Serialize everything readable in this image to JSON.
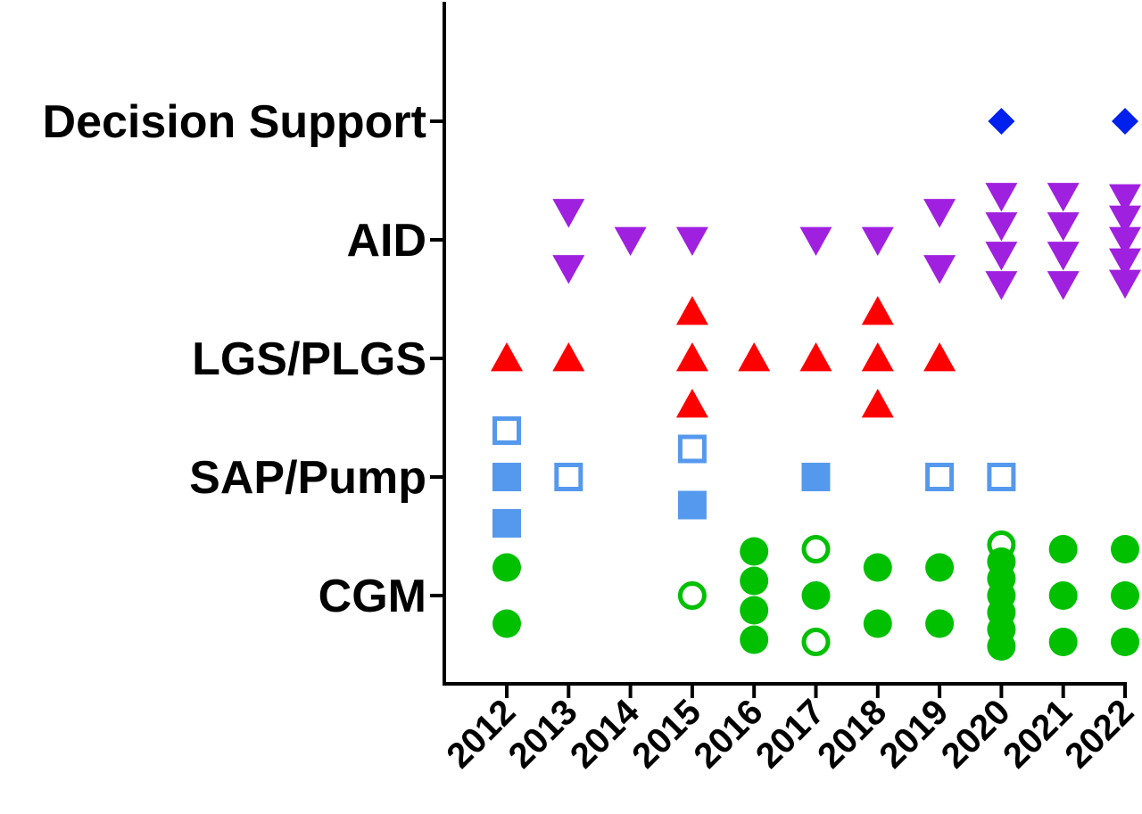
{
  "chart_data": {
    "type": "scatter",
    "title": "",
    "xlabel": "",
    "ylabel": "",
    "categories_y": [
      "CGM",
      "SAP/Pump",
      "LGS/PLGS",
      "AID",
      "Decision Support"
    ],
    "categories_x": [
      "2012",
      "2013",
      "2014",
      "2015",
      "2016",
      "2017",
      "2018",
      "2019",
      "2020",
      "2021",
      "2022"
    ],
    "grid": false,
    "legend": "none",
    "marker_styles": {
      "cgm_filled": {
        "shape": "circle",
        "fill": true,
        "color": "#00c000"
      },
      "cgm_open": {
        "shape": "circle",
        "fill": false,
        "color": "#00c000"
      },
      "pump_filled": {
        "shape": "square",
        "fill": true,
        "color": "#5599ee"
      },
      "pump_open": {
        "shape": "square",
        "fill": false,
        "color": "#5599ee"
      },
      "lgs": {
        "shape": "triangle-up",
        "fill": true,
        "color": "#ff0000"
      },
      "aid": {
        "shape": "triangle-down",
        "fill": true,
        "color": "#a020e0"
      },
      "decision": {
        "shape": "diamond",
        "fill": true,
        "color": "#0020ee"
      }
    },
    "points": [
      {
        "x": "2012",
        "y": "CGM",
        "count": 2,
        "style": "cgm_filled"
      },
      {
        "x": "2015",
        "y": "CGM",
        "count": 1,
        "style": "cgm_open"
      },
      {
        "x": "2016",
        "y": "CGM",
        "count": 4,
        "style": "cgm_filled"
      },
      {
        "x": "2017",
        "y": "CGM",
        "count": 1,
        "style": "cgm_filled"
      },
      {
        "x": "2017",
        "y": "CGM",
        "count": 2,
        "style": "cgm_open"
      },
      {
        "x": "2018",
        "y": "CGM",
        "count": 2,
        "style": "cgm_filled"
      },
      {
        "x": "2019",
        "y": "CGM",
        "count": 2,
        "style": "cgm_filled"
      },
      {
        "x": "2020",
        "y": "CGM",
        "count": 6,
        "style": "cgm_filled"
      },
      {
        "x": "2020",
        "y": "CGM",
        "count": 1,
        "style": "cgm_open"
      },
      {
        "x": "2021",
        "y": "CGM",
        "count": 3,
        "style": "cgm_filled"
      },
      {
        "x": "2022",
        "y": "CGM",
        "count": 3,
        "style": "cgm_filled"
      },
      {
        "x": "2012",
        "y": "SAP/Pump",
        "count": 2,
        "style": "pump_filled"
      },
      {
        "x": "2012",
        "y": "SAP/Pump",
        "count": 1,
        "style": "pump_open"
      },
      {
        "x": "2013",
        "y": "SAP/Pump",
        "count": 1,
        "style": "pump_open"
      },
      {
        "x": "2015",
        "y": "SAP/Pump",
        "count": 1,
        "style": "pump_filled"
      },
      {
        "x": "2015",
        "y": "SAP/Pump",
        "count": 1,
        "style": "pump_open"
      },
      {
        "x": "2017",
        "y": "SAP/Pump",
        "count": 1,
        "style": "pump_filled"
      },
      {
        "x": "2019",
        "y": "SAP/Pump",
        "count": 1,
        "style": "pump_open"
      },
      {
        "x": "2020",
        "y": "SAP/Pump",
        "count": 1,
        "style": "pump_open"
      },
      {
        "x": "2012",
        "y": "LGS/PLGS",
        "count": 1,
        "style": "lgs"
      },
      {
        "x": "2013",
        "y": "LGS/PLGS",
        "count": 1,
        "style": "lgs"
      },
      {
        "x": "2015",
        "y": "LGS/PLGS",
        "count": 3,
        "style": "lgs"
      },
      {
        "x": "2016",
        "y": "LGS/PLGS",
        "count": 1,
        "style": "lgs"
      },
      {
        "x": "2017",
        "y": "LGS/PLGS",
        "count": 1,
        "style": "lgs"
      },
      {
        "x": "2018",
        "y": "LGS/PLGS",
        "count": 3,
        "style": "lgs"
      },
      {
        "x": "2019",
        "y": "LGS/PLGS",
        "count": 1,
        "style": "lgs"
      },
      {
        "x": "2013",
        "y": "AID",
        "count": 2,
        "style": "aid"
      },
      {
        "x": "2014",
        "y": "AID",
        "count": 1,
        "style": "aid"
      },
      {
        "x": "2015",
        "y": "AID",
        "count": 1,
        "style": "aid"
      },
      {
        "x": "2017",
        "y": "AID",
        "count": 1,
        "style": "aid"
      },
      {
        "x": "2018",
        "y": "AID",
        "count": 1,
        "style": "aid"
      },
      {
        "x": "2019",
        "y": "AID",
        "count": 2,
        "style": "aid"
      },
      {
        "x": "2020",
        "y": "AID",
        "count": 4,
        "style": "aid"
      },
      {
        "x": "2021",
        "y": "AID",
        "count": 4,
        "style": "aid"
      },
      {
        "x": "2022",
        "y": "AID",
        "count": 5,
        "style": "aid"
      },
      {
        "x": "2020",
        "y": "Decision Support",
        "count": 1,
        "style": "decision"
      },
      {
        "x": "2022",
        "y": "Decision Support",
        "count": 1,
        "style": "decision"
      }
    ]
  }
}
